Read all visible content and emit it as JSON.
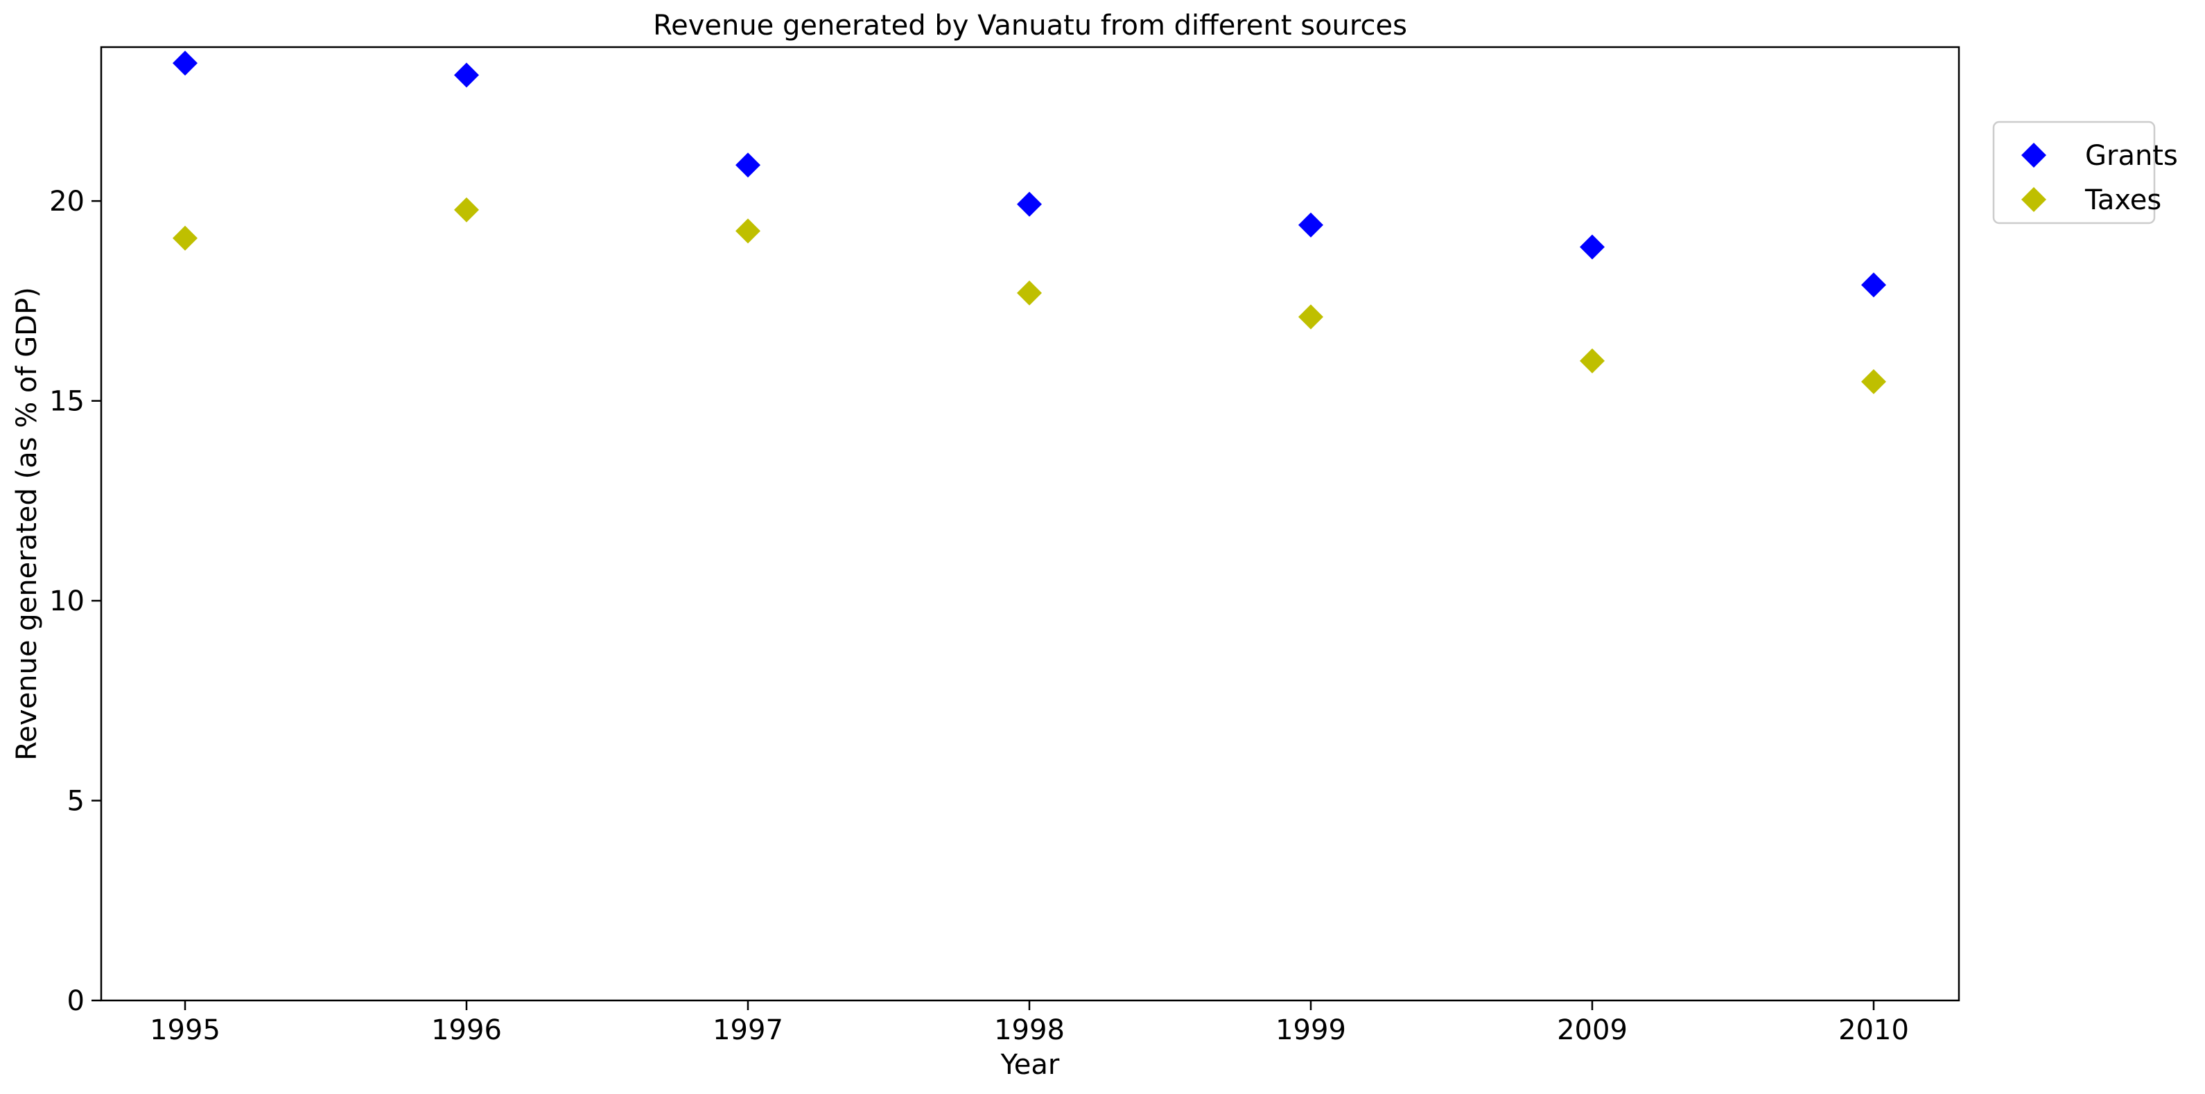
{
  "chart_data": {
    "type": "scatter",
    "title": "Revenue generated by Vanuatu from different sources",
    "xlabel": "Year",
    "ylabel": "Revenue generated (as % of GDP)",
    "categories": [
      "1995",
      "1996",
      "1997",
      "1998",
      "1999",
      "2009",
      "2010"
    ],
    "ylim": [
      0,
      23.85
    ],
    "yticks": [
      0,
      5,
      10,
      15,
      20
    ],
    "grid": false,
    "legend_position": "outside-top-right",
    "marker": "diamond",
    "series": [
      {
        "name": "Grants",
        "color": "#0000ff",
        "values": [
          23.45,
          23.15,
          20.9,
          19.92,
          19.4,
          18.85,
          17.9
        ]
      },
      {
        "name": "Taxes",
        "color": "#bfbf00",
        "values": [
          19.07,
          19.78,
          19.25,
          17.7,
          17.1,
          16.0,
          15.48
        ]
      }
    ]
  }
}
